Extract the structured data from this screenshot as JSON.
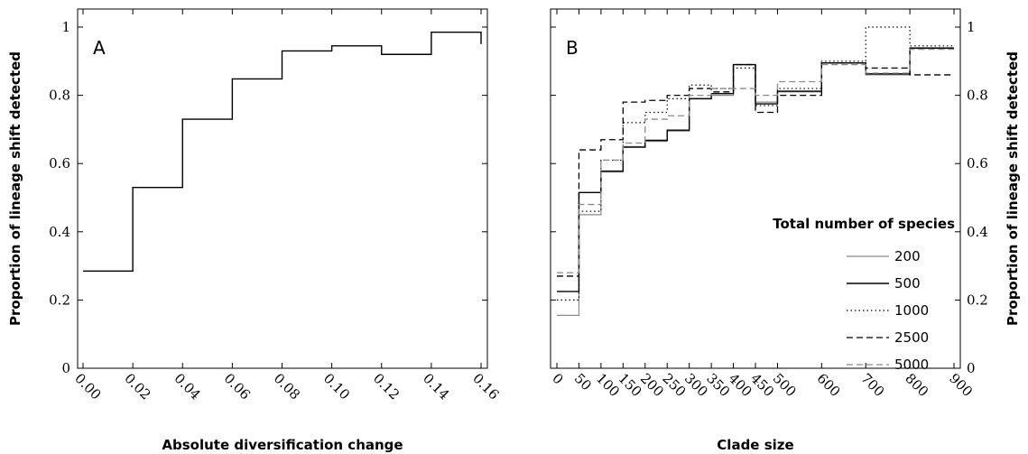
{
  "chart_data": [
    {
      "type": "line",
      "step": true,
      "panel_label": "A",
      "xlabel": "Absolute diversification change",
      "ylabel": "Proportion of lineage shift detected",
      "xlim": [
        0,
        0.16
      ],
      "ylim": [
        0,
        1
      ],
      "x_ticks": [
        "0.00",
        "0.02",
        "0.04",
        "0.06",
        "0.08",
        "0.10",
        "0.12",
        "0.14",
        "0.16"
      ],
      "y_ticks": [
        "0",
        "0.2",
        "0.4",
        "0.6",
        "0.8",
        "1"
      ],
      "series": [
        {
          "x": [
            0,
            0.02,
            0.04,
            0.06,
            0.08,
            0.1,
            0.12,
            0.14
          ],
          "values": [
            0.285,
            0.53,
            0.73,
            0.848,
            0.93,
            0.945,
            0.92,
            0.985
          ]
        }
      ],
      "grid": false
    },
    {
      "type": "line",
      "step": true,
      "panel_label": "B",
      "xlabel": "Clade size",
      "ylabel": "Proportion of lineage shift detected",
      "xlim": [
        0,
        900
      ],
      "ylim": [
        0,
        1
      ],
      "x_ticks": [
        "0",
        "50",
        "100",
        "150",
        "200",
        "250",
        "300",
        "350",
        "400",
        "450",
        "500",
        "600",
        "700",
        "800",
        "900"
      ],
      "y_ticks": [
        "0",
        "0.2",
        "0.4",
        "0.6",
        "0.8",
        "1"
      ],
      "legend_title": "Total number of species",
      "legend_position": "right",
      "bin_edges": [
        0,
        50,
        100,
        150,
        200,
        250,
        300,
        350,
        400,
        450,
        500,
        600,
        700,
        800,
        900
      ],
      "series": [
        {
          "name": "200",
          "style": "solid-gray",
          "values": [
            0.155,
            0.45,
            0.575,
            0.65,
            0.665,
            0.695,
            0.79,
            0.8,
            0.89,
            0.78,
            0.81,
            0.895,
            0.86,
            0.94
          ]
        },
        {
          "name": "500",
          "style": "solid-black",
          "values": [
            0.225,
            0.515,
            0.578,
            0.648,
            0.668,
            0.698,
            0.79,
            0.805,
            0.89,
            0.775,
            0.812,
            0.895,
            0.863,
            0.938
          ]
        },
        {
          "name": "1000",
          "style": "dotted",
          "values": [
            0.2,
            0.46,
            0.61,
            0.72,
            0.75,
            0.79,
            0.83,
            0.82,
            0.88,
            0.77,
            0.82,
            0.9,
            1.0,
            0.945
          ]
        },
        {
          "name": "2500",
          "style": "dashed-black",
          "values": [
            0.27,
            0.64,
            0.67,
            0.78,
            0.785,
            0.8,
            0.82,
            0.81,
            0.89,
            0.75,
            0.8,
            0.895,
            0.88,
            0.86
          ]
        },
        {
          "name": "5000",
          "style": "dashed-gray",
          "values": [
            0.28,
            0.48,
            0.61,
            0.66,
            0.73,
            0.74,
            0.8,
            0.82,
            0.82,
            0.8,
            0.84,
            0.89,
            0.865,
            0.935
          ]
        }
      ],
      "grid": false
    }
  ]
}
